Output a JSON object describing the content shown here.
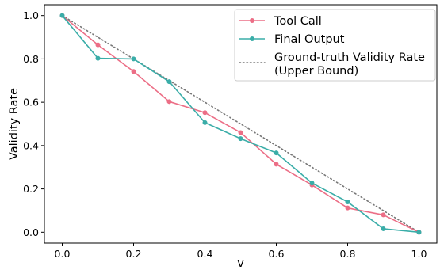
{
  "chart_data": {
    "type": "line",
    "xlabel": "v",
    "ylabel": "Validity Rate",
    "xlim": [
      -0.05,
      1.05
    ],
    "ylim": [
      -0.05,
      1.05
    ],
    "x_ticks": [
      0.0,
      0.2,
      0.4,
      0.6,
      0.8,
      1.0
    ],
    "y_ticks": [
      0.0,
      0.2,
      0.4,
      0.6,
      0.8,
      1.0
    ],
    "x_tick_labels": [
      "0.0",
      "0.2",
      "0.4",
      "0.6",
      "0.8",
      "1.0"
    ],
    "y_tick_labels": [
      "0.0",
      "0.2",
      "0.4",
      "0.6",
      "0.8",
      "1.0"
    ],
    "grid": false,
    "legend_position": "top-right",
    "series": [
      {
        "name": "Tool Call",
        "color": "#ec6e86",
        "style": "solid",
        "marker": "circle",
        "x": [
          0.0,
          0.1,
          0.2,
          0.3,
          0.4,
          0.5,
          0.6,
          0.7,
          0.8,
          0.9,
          1.0
        ],
        "y": [
          1.0,
          0.865,
          0.742,
          0.603,
          0.552,
          0.46,
          0.314,
          0.218,
          0.112,
          0.08,
          0.0
        ]
      },
      {
        "name": "Final Output",
        "color": "#3aada8",
        "style": "solid",
        "marker": "circle",
        "x": [
          0.0,
          0.1,
          0.2,
          0.3,
          0.4,
          0.5,
          0.6,
          0.7,
          0.8,
          0.9,
          1.0
        ],
        "y": [
          1.0,
          0.803,
          0.8,
          0.695,
          0.506,
          0.432,
          0.366,
          0.227,
          0.14,
          0.016,
          0.0
        ]
      },
      {
        "name": "Ground-truth Validity Rate (Upper Bound)",
        "legend_lines": [
          "Ground-truth Validity Rate",
          "(Upper Bound)"
        ],
        "color": "#777777",
        "style": "dotted",
        "marker": "none",
        "x": [
          0.0,
          1.0
        ],
        "y": [
          1.0,
          0.0
        ]
      }
    ]
  }
}
